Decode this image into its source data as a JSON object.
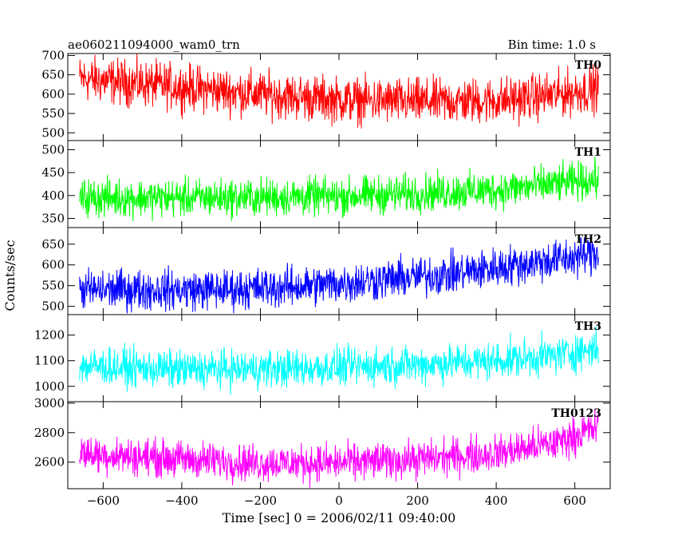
{
  "header": {
    "title": "ae060211094000_wam0_trn",
    "bin_time": "Bin time: 1.0 s"
  },
  "chart_data": {
    "type": "line",
    "title": "ae060211094000_wam0_trn",
    "xlabel": "Time [sec] 0 = 2006/02/11 09:40:00",
    "ylabel": "Counts/sec",
    "xlim": [
      -690,
      690
    ],
    "x_ticks": [
      -600,
      -400,
      -200,
      0,
      200,
      400,
      600
    ],
    "x_tick_labels": [
      "−600",
      "−400",
      "−200",
      "0",
      "200",
      "400",
      "600"
    ],
    "x_data_range": [
      -660,
      660
    ],
    "bin_time_s": 1.0,
    "grid": false,
    "panels": [
      {
        "label": "TH0",
        "color": "#ff0000",
        "ylim": [
          480,
          705
        ],
        "yticks": [
          500,
          550,
          600,
          650,
          700
        ],
        "trend": [
          [
            -660,
            640
          ],
          [
            -400,
            618
          ],
          [
            -200,
            600
          ],
          [
            0,
            585
          ],
          [
            200,
            580
          ],
          [
            400,
            583
          ],
          [
            550,
            598
          ],
          [
            660,
            615
          ]
        ],
        "noise": 40
      },
      {
        "label": "TH1",
        "color": "#00ff00",
        "ylim": [
          330,
          520
        ],
        "yticks": [
          350,
          400,
          450,
          500
        ],
        "trend": [
          [
            -660,
            395
          ],
          [
            -300,
            395
          ],
          [
            0,
            398
          ],
          [
            200,
            405
          ],
          [
            400,
            412
          ],
          [
            550,
            425
          ],
          [
            660,
            435
          ]
        ],
        "noise": 28
      },
      {
        "label": "TH2",
        "color": "#0000ff",
        "ylim": [
          480,
          690
        ],
        "yticks": [
          500,
          550,
          600,
          650
        ],
        "trend": [
          [
            -660,
            540
          ],
          [
            -300,
            540
          ],
          [
            -100,
            548
          ],
          [
            100,
            563
          ],
          [
            300,
            580
          ],
          [
            450,
            600
          ],
          [
            600,
            618
          ],
          [
            660,
            630
          ]
        ],
        "noise": 33
      },
      {
        "label": "TH3",
        "color": "#00ffff",
        "ylim": [
          940,
          1280
        ],
        "yticks": [
          1000,
          1100,
          1200
        ],
        "trend": [
          [
            -660,
            1080
          ],
          [
            -400,
            1065
          ],
          [
            -100,
            1070
          ],
          [
            200,
            1085
          ],
          [
            400,
            1100
          ],
          [
            550,
            1120
          ],
          [
            660,
            1150
          ]
        ],
        "noise": 50
      },
      {
        "label": "TH0123",
        "color": "#ff00ff",
        "ylim": [
          2420,
          3010
        ],
        "yticks": [
          2600,
          2800,
          3000
        ],
        "trend": [
          [
            -660,
            2660
          ],
          [
            -400,
            2620
          ],
          [
            -200,
            2595
          ],
          [
            0,
            2595
          ],
          [
            200,
            2620
          ],
          [
            400,
            2660
          ],
          [
            550,
            2730
          ],
          [
            660,
            2840
          ]
        ],
        "noise": 85
      }
    ]
  }
}
